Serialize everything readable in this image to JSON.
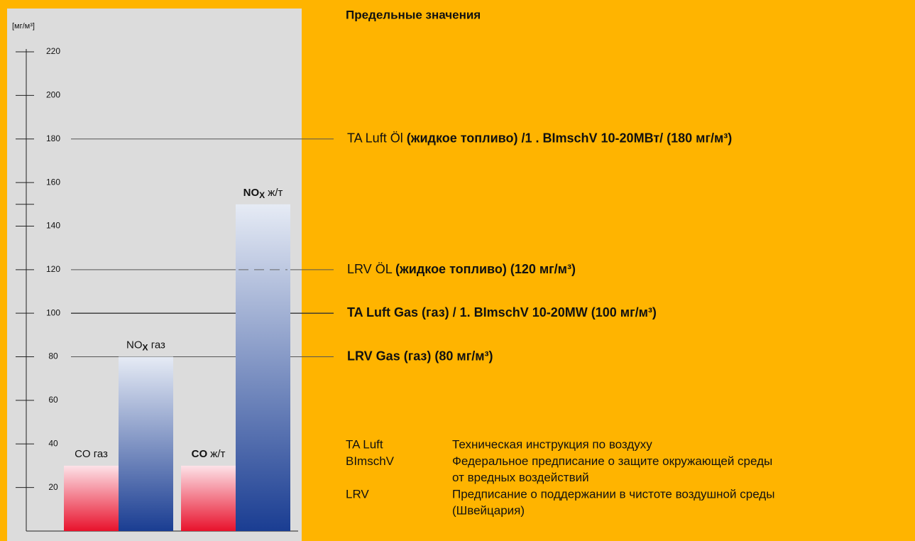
{
  "chart_data": {
    "type": "bar",
    "title": "Предельные значения",
    "y_unit": "[мг/м³]",
    "ylim": [
      0,
      220
    ],
    "yticks": [
      20,
      40,
      60,
      80,
      100,
      120,
      140,
      160,
      180,
      200,
      220
    ],
    "minor_ticks": [
      150
    ],
    "categories": [
      {
        "formula": "CO",
        "suffix": " газ",
        "bold": false
      },
      {
        "formula": "NO",
        "sub": "X",
        "suffix": " газ",
        "bold": false
      },
      {
        "formula": "CO",
        "suffix": " ж/т",
        "bold": true
      },
      {
        "formula": "NO",
        "sub": "X",
        "suffix": " ж/т",
        "bold": true
      }
    ],
    "values": [
      30,
      80,
      30,
      150
    ],
    "colors": [
      {
        "top": "#fde2e8",
        "bottom": "#e8122c"
      },
      {
        "top": "#e6ebf5",
        "bottom": "#1a3d92"
      },
      {
        "top": "#fde2e8",
        "bottom": "#e8122c"
      },
      {
        "top": "#e6ebf5",
        "bottom": "#1a3d92"
      }
    ],
    "limits": [
      {
        "value": 180,
        "dashed": false,
        "parts": [
          {
            "text": "TA Luft Öl ",
            "bold": false
          },
          {
            "text": "(жидкое топливо) /1 . BImschV 10-20МВт/ (180 мг/м³)",
            "bold": true
          }
        ]
      },
      {
        "value": 120,
        "dashed": true,
        "parts": [
          {
            "text": "LRV ÖL ",
            "bold": false
          },
          {
            "text": "(жидкое топливо) (120 мг/м³)",
            "bold": true
          }
        ]
      },
      {
        "value": 100,
        "dashed": false,
        "parts": [
          {
            "text": "TA Luft Gas (газ) / 1. BImschV 10-20MW (100 мг/м³)",
            "bold": true
          }
        ]
      },
      {
        "value": 80,
        "dashed": false,
        "parts": [
          {
            "text": "LRV Gas (газ) (80 мг/м³)",
            "bold": true
          }
        ]
      }
    ]
  },
  "glossary": [
    {
      "abbr": "TA Luft",
      "lines": [
        "Техническая инструкция по воздуху"
      ]
    },
    {
      "abbr": "BImschV",
      "lines": [
        "Федеральное предписание о защите окружающей среды",
        "от вредных воздействий"
      ]
    },
    {
      "abbr": "LRV",
      "lines": [
        "Предписание о поддержании в чистоте воздушной среды",
        "(Швейцария)"
      ]
    }
  ]
}
